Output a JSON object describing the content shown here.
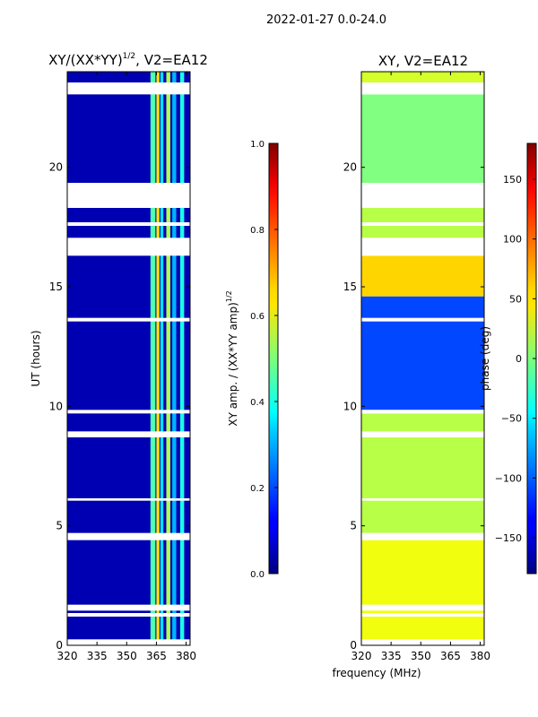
{
  "figure": {
    "suptitle": "2022-01-27 0.0-24.0",
    "xlabel": "frequency (MHz)"
  },
  "chart_data": [
    {
      "type": "heatmap",
      "title": "XY/(XX*YY)",
      "title_sup": "1/2",
      "title_suffix": ", V2=EA12",
      "ylabel": "UT (hours)",
      "xlim": [
        320,
        382
      ],
      "ylim": [
        0,
        24
      ],
      "xticks": [
        320,
        335,
        350,
        365,
        380
      ],
      "yticks": [
        0,
        5,
        10,
        15,
        20
      ],
      "colorbar": {
        "label": "XY amp. / (XX*YY amp)",
        "label_sup": "1/2",
        "range": [
          0.0,
          1.0
        ],
        "ticks": [
          "0.0",
          "0.2",
          "0.4",
          "0.6",
          "0.8",
          "1.0"
        ],
        "colormap": "jet"
      },
      "base_value": 0.05,
      "stripes": [
        {
          "x0": 362,
          "x1": 364.5,
          "value": 0.45
        },
        {
          "x0": 365,
          "x1": 366.5,
          "value": 0.65
        },
        {
          "x0": 367,
          "x1": 368.5,
          "value": 0.35
        },
        {
          "x0": 370,
          "x1": 372,
          "value": 0.55
        },
        {
          "x0": 373,
          "x1": 375,
          "value": 0.3
        },
        {
          "x0": 377,
          "x1": 379,
          "value": 0.4
        }
      ],
      "blank_intervals": [
        [
          0.0,
          0.25
        ],
        [
          1.2,
          1.35
        ],
        [
          1.45,
          1.7
        ],
        [
          4.4,
          4.7
        ],
        [
          6.05,
          6.15
        ],
        [
          8.7,
          8.95
        ],
        [
          9.7,
          9.85
        ],
        [
          13.55,
          13.7
        ],
        [
          16.3,
          17.05
        ],
        [
          17.55,
          17.7
        ],
        [
          18.3,
          19.35
        ],
        [
          23.05,
          23.55
        ],
        [
          24.0,
          24.0
        ]
      ]
    },
    {
      "type": "heatmap",
      "title": "XY, V2=EA12",
      "xlim": [
        320,
        382
      ],
      "ylim": [
        0,
        24
      ],
      "xticks": [
        320,
        335,
        350,
        365,
        380
      ],
      "yticks": [
        0,
        5,
        10,
        15,
        20
      ],
      "colorbar": {
        "label": "phase (deg)",
        "range": [
          -180,
          180
        ],
        "ticks": [
          "-150",
          "-100",
          "-50",
          "0",
          "50",
          "100",
          "150"
        ],
        "tick_values": [
          -150,
          -100,
          -50,
          0,
          50,
          100,
          150
        ],
        "colormap": "jet"
      },
      "regions": [
        {
          "y0": 0.0,
          "y1": 4.4,
          "value": 40
        },
        {
          "y0": 4.7,
          "y1": 9.7,
          "value": 20
        },
        {
          "y0": 9.85,
          "y1": 14.6,
          "value": -110
        },
        {
          "y0": 14.6,
          "y1": 16.3,
          "value": 60
        },
        {
          "y0": 17.05,
          "y1": 18.3,
          "value": 20
        },
        {
          "y0": 19.35,
          "y1": 23.05,
          "value": 0
        },
        {
          "y0": 23.55,
          "y1": 24.0,
          "value": 30
        }
      ],
      "blank_intervals": [
        [
          0.0,
          0.25
        ],
        [
          1.2,
          1.35
        ],
        [
          1.45,
          1.7
        ],
        [
          4.4,
          4.7
        ],
        [
          6.05,
          6.15
        ],
        [
          8.7,
          8.95
        ],
        [
          9.7,
          9.85
        ],
        [
          13.55,
          13.7
        ],
        [
          16.3,
          17.05
        ],
        [
          17.55,
          17.7
        ],
        [
          18.3,
          19.35
        ],
        [
          23.05,
          23.55
        ]
      ]
    }
  ]
}
